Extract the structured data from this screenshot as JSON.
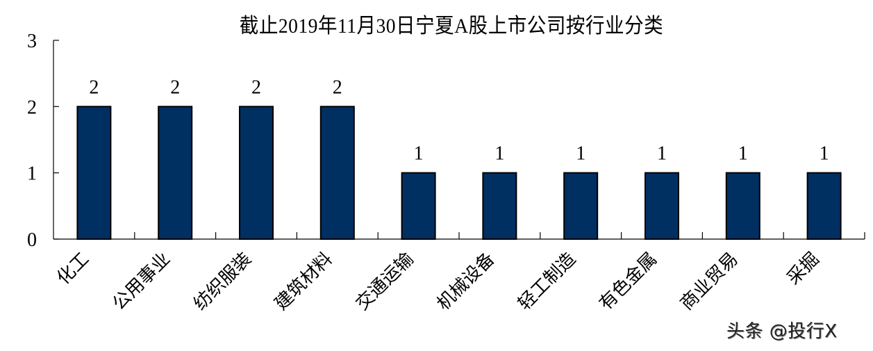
{
  "chart_data": {
    "type": "bar",
    "title": "截止2019年11月30日宁夏A股上市公司按行业分类",
    "xlabel": "",
    "ylabel": "",
    "categories": [
      "化工",
      "公用事业",
      "纺织服装",
      "建筑材料",
      "交通运输",
      "机械设备",
      "轻工制造",
      "有色金属",
      "商业贸易",
      "采掘"
    ],
    "values": [
      2,
      2,
      2,
      2,
      1,
      1,
      1,
      1,
      1,
      1
    ],
    "data_labels": [
      "2",
      "2",
      "2",
      "2",
      "1",
      "1",
      "1",
      "1",
      "1",
      "1"
    ],
    "ylim": [
      0,
      3
    ],
    "yticks": [
      0,
      1,
      2,
      3
    ],
    "grid": false,
    "legend": null,
    "bar_color": "#002f62",
    "bar_edge_color": "#000000",
    "x_tick_label_rotation": -45
  },
  "watermark": "头条 @投行X"
}
